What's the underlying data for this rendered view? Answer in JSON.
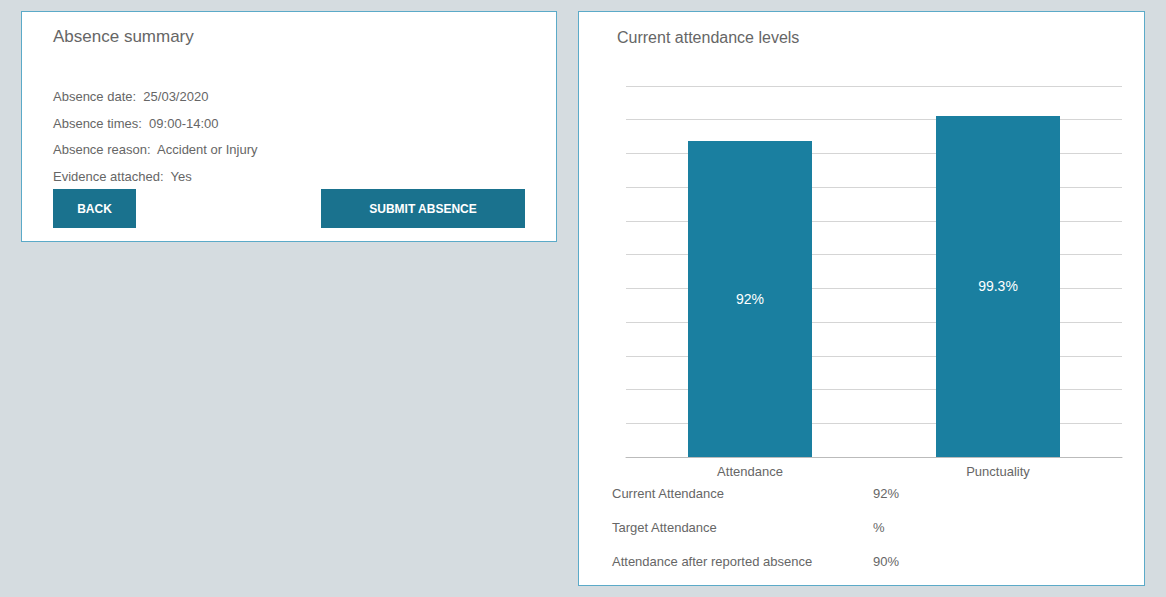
{
  "chart_data": {
    "type": "bar",
    "title": "Current attendance levels",
    "categories": [
      "Attendance",
      "Punctuality"
    ],
    "values": [
      92,
      99.3
    ],
    "value_labels": [
      "92%",
      "99.3%"
    ],
    "data_labels": true,
    "color": "#1a7fa0",
    "ylim": [
      0,
      108
    ],
    "yticks": [
      0,
      9.818181818181818,
      19.636363636363637,
      29.454545454545453,
      39.27272727272727,
      49.09090909090909,
      58.90909090909091,
      68.72727272727273,
      78.54545454545455,
      88.36363636363636,
      98.18181818181819,
      108
    ],
    "grid": true,
    "tick_labels": "x",
    "annotations": [
      "Absence summary",
      "Absence date:  25/03/2020",
      "Absence times:  09:00-14:00",
      "Absence reason:  Accident or Injury",
      "Evidence attached:  Yes",
      "BACK",
      "SUBMIT ABSENCE",
      "Current Attendance",
      "92%",
      "Target Attendance",
      "%",
      "Attendance after reported absence",
      "90%"
    ]
  }
}
